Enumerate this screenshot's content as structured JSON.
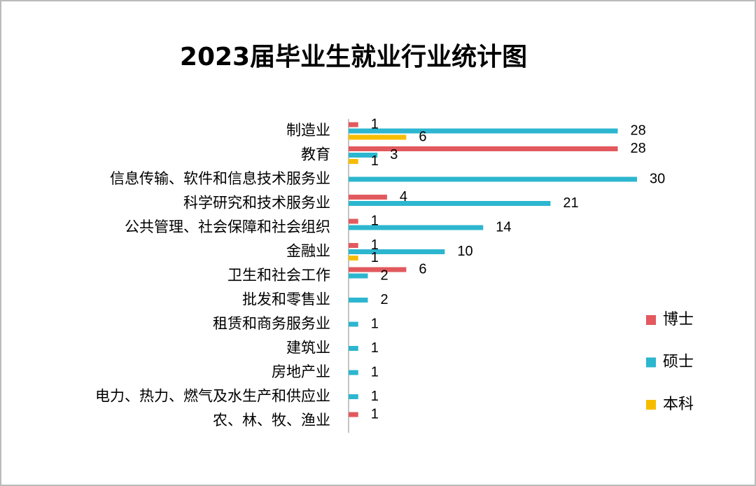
{
  "chart_data": {
    "type": "hbar",
    "title": "2023届毕业生就业行业统计图",
    "categories": [
      "制造业",
      "教育",
      "信息传输、软件和信息技术服务业",
      "科学研究和技术服务业",
      "公共管理、社会保障和社会组织",
      "金融业",
      "卫生和社会工作",
      "批发和零售业",
      "租赁和商务服务业",
      "建筑业",
      "房地产业",
      "电力、热力、燃气及水生产和供应业",
      "农、林、牧、渔业"
    ],
    "series": [
      {
        "name": "博士",
        "color": "#e2595e",
        "values": [
          1,
          28,
          null,
          4,
          1,
          1,
          6,
          null,
          null,
          null,
          null,
          null,
          1
        ]
      },
      {
        "name": "硕士",
        "color": "#2cb6cf",
        "values": [
          28,
          3,
          30,
          21,
          14,
          10,
          2,
          2,
          1,
          1,
          1,
          1,
          null
        ]
      },
      {
        "name": "本科",
        "color": "#f6bd00",
        "values": [
          6,
          1,
          null,
          null,
          null,
          1,
          null,
          null,
          null,
          null,
          null,
          null,
          null
        ]
      }
    ],
    "xlim": [
      0,
      30
    ],
    "legend": "right"
  }
}
